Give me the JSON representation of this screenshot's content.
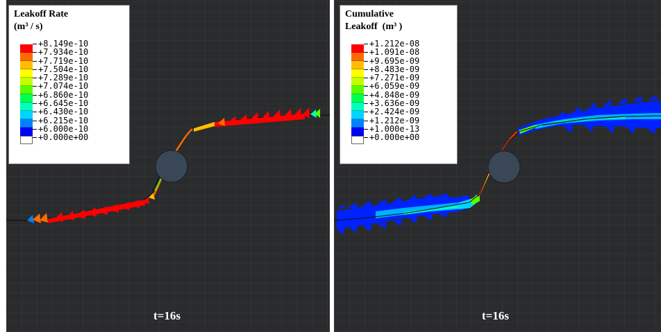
{
  "panels": [
    {
      "legend_title": "Leakoff Rate\n(m³ / s)",
      "labels": [
        "+8.149e-10",
        "+7.934e-10",
        "+7.719e-10",
        "+7.504e-10",
        "+7.289e-10",
        "+7.074e-10",
        "+6.860e-10",
        "+6.645e-10",
        "+6.430e-10",
        "+6.215e-10",
        "+6.000e-10",
        "+0.000e+00"
      ],
      "time_label": "t=16s"
    },
    {
      "legend_title": "Cumulative\nLeakoff  (m³ )",
      "labels": [
        "+1.212e-08",
        "+1.091e-08",
        "+9.695e-09",
        "+8.483e-09",
        "+7.271e-09",
        "+6.059e-09",
        "+4.848e-09",
        "+3.636e-09",
        "+2.424e-09",
        "+1.212e-09",
        "+1.000e-13",
        "+0.000e+00"
      ],
      "time_label": "t=16s"
    }
  ],
  "colors": {
    "legend_bands": [
      "#ff0000",
      "#ff6a00",
      "#ffbf00",
      "#ffff00",
      "#bfff00",
      "#55ff00",
      "#00ff55",
      "#00ffbf",
      "#00d5ff",
      "#0080ff",
      "#0000ff"
    ],
    "background": "#2a2b2d",
    "wellbore": "#3a4756"
  }
}
